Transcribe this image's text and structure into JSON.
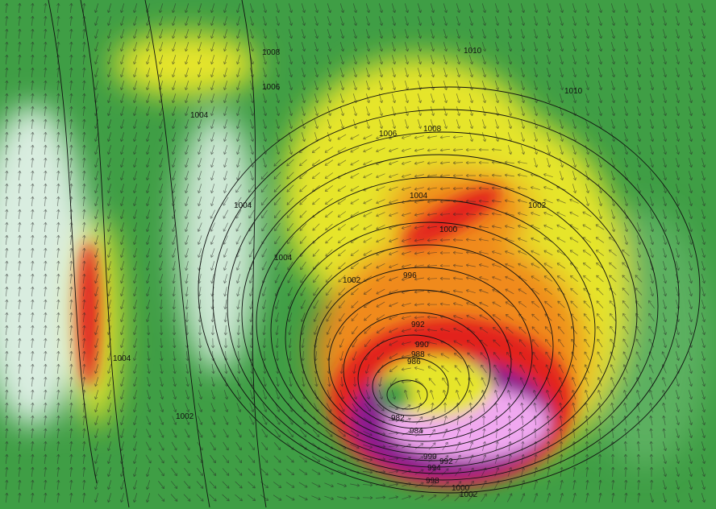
{
  "map": {
    "type": "weather-model-wind-pressure",
    "colors": {
      "calm": "#d9ede0",
      "light": "#3f9e45",
      "moderate": "#e6e52a",
      "strong": "#f08a1c",
      "very_strong": "#e2231e",
      "extreme": "#8a1f8f",
      "extreme_peak": "#f0a8f0",
      "isobar": "#111111"
    },
    "isobar_labels": [
      "1008",
      "1010",
      "1006",
      "1004",
      "1010",
      "1006",
      "1008",
      "1004",
      "1004",
      "1002",
      "1000",
      "1004",
      "1002",
      "996",
      "992",
      "990",
      "988",
      "986",
      "982",
      "984",
      "990",
      "992",
      "994",
      "998",
      "1000",
      "1002",
      "1004",
      "1002"
    ]
  }
}
